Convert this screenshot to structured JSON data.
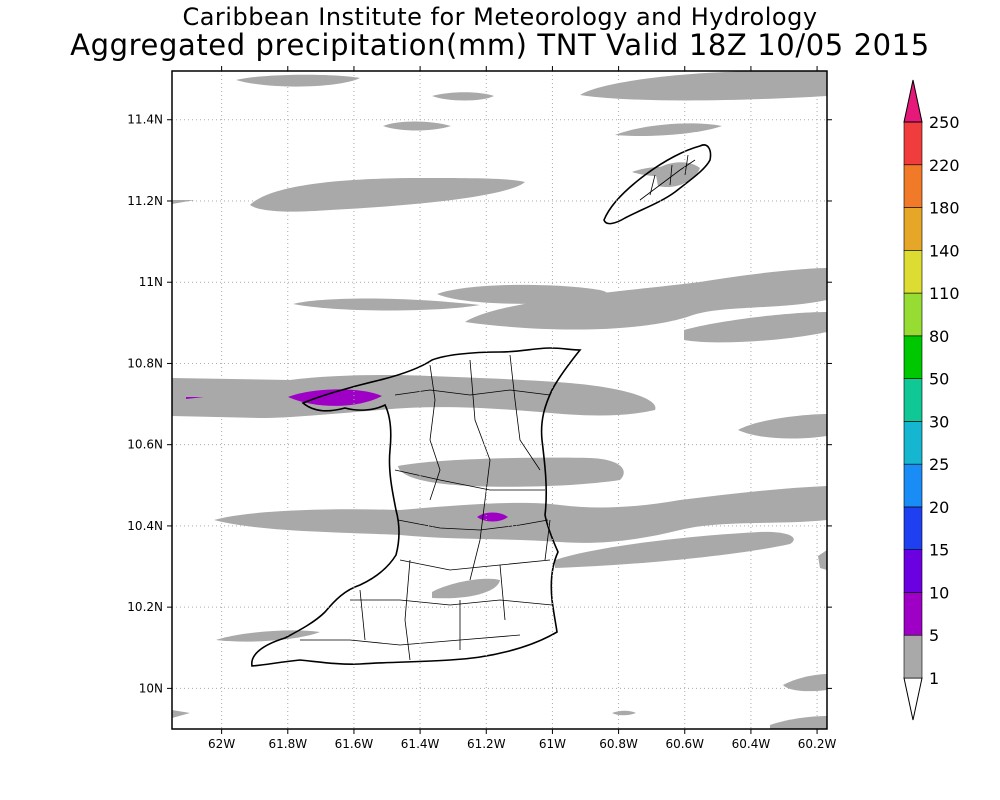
{
  "header": {
    "line1": "Caribbean Institute for Meteorology and Hydrology",
    "line2": "Aggregated precipitation(mm) TNT Valid 18Z 10/05 2015"
  },
  "map": {
    "lon_labels": [
      "62W",
      "61.8W",
      "61.6W",
      "61.4W",
      "61.2W",
      "61W",
      "60.8W",
      "60.6W",
      "60.4W",
      "60.2W"
    ],
    "lat_labels": [
      "10N",
      "10.2N",
      "10.4N",
      "10.6N",
      "10.8N",
      "11N",
      "11.2N",
      "11.4N"
    ],
    "lon_range": [
      -62.15,
      -60.17
    ],
    "lat_range": [
      9.9,
      11.52
    ],
    "grid": true,
    "grid_style": "dotted"
  },
  "colorbar": {
    "levels": [
      "1",
      "5",
      "10",
      "15",
      "20",
      "25",
      "30",
      "50",
      "80",
      "110",
      "140",
      "180",
      "220",
      "250"
    ],
    "colors": [
      "#ffffff",
      "#a9a9a9",
      "#9f00c5",
      "#6b00e0",
      "#1f40f0",
      "#1a8cf5",
      "#16b6d0",
      "#10c896",
      "#00c800",
      "#96dc32",
      "#dcdc32",
      "#e6a628",
      "#f07a28",
      "#f03c3c",
      "#e6187a"
    ]
  }
}
